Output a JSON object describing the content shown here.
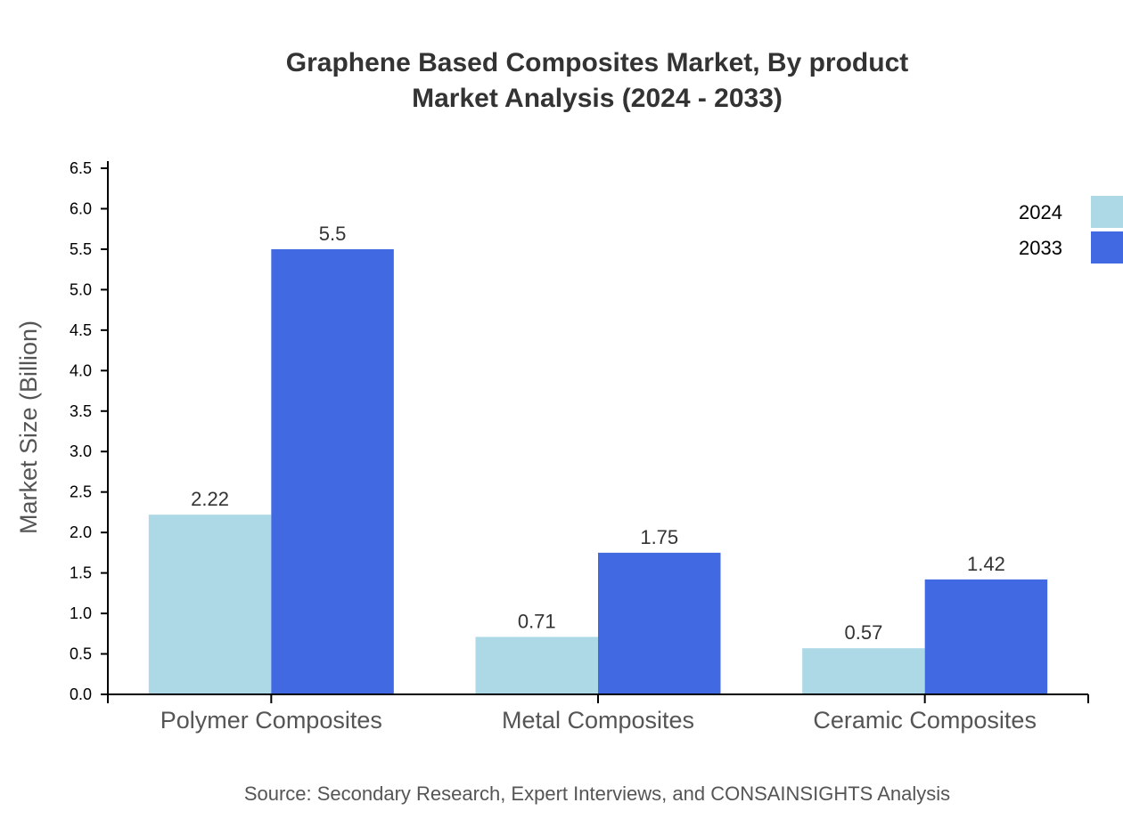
{
  "chart_data": {
    "type": "bar",
    "title_lines": [
      "Graphene Based Composites Market, By product",
      "Market Analysis (2024 - 2033)"
    ],
    "ylabel": "Market Size (Billion)",
    "xlabel": "",
    "ylim": [
      0,
      6.5
    ],
    "yticks": [
      0.0,
      0.5,
      1.0,
      1.5,
      2.0,
      2.5,
      3.0,
      3.5,
      4.0,
      4.5,
      5.0,
      5.5,
      6.0,
      6.5
    ],
    "categories": [
      "Polymer Composites",
      "Metal Composites",
      "Ceramic Composites"
    ],
    "series": [
      {
        "name": "2024",
        "color": "#add8e6",
        "values": [
          2.22,
          0.71,
          0.57
        ],
        "labels": [
          "2.22",
          "0.71",
          "0.57"
        ]
      },
      {
        "name": "2033",
        "color": "#4169e1",
        "values": [
          5.5,
          1.75,
          1.42
        ],
        "labels": [
          "5.5",
          "1.75",
          "1.42"
        ]
      }
    ],
    "legend_position": "top-right",
    "grid": false,
    "source": "Source: Secondary Research, Expert Interviews, and CONSAINSIGHTS Analysis"
  }
}
